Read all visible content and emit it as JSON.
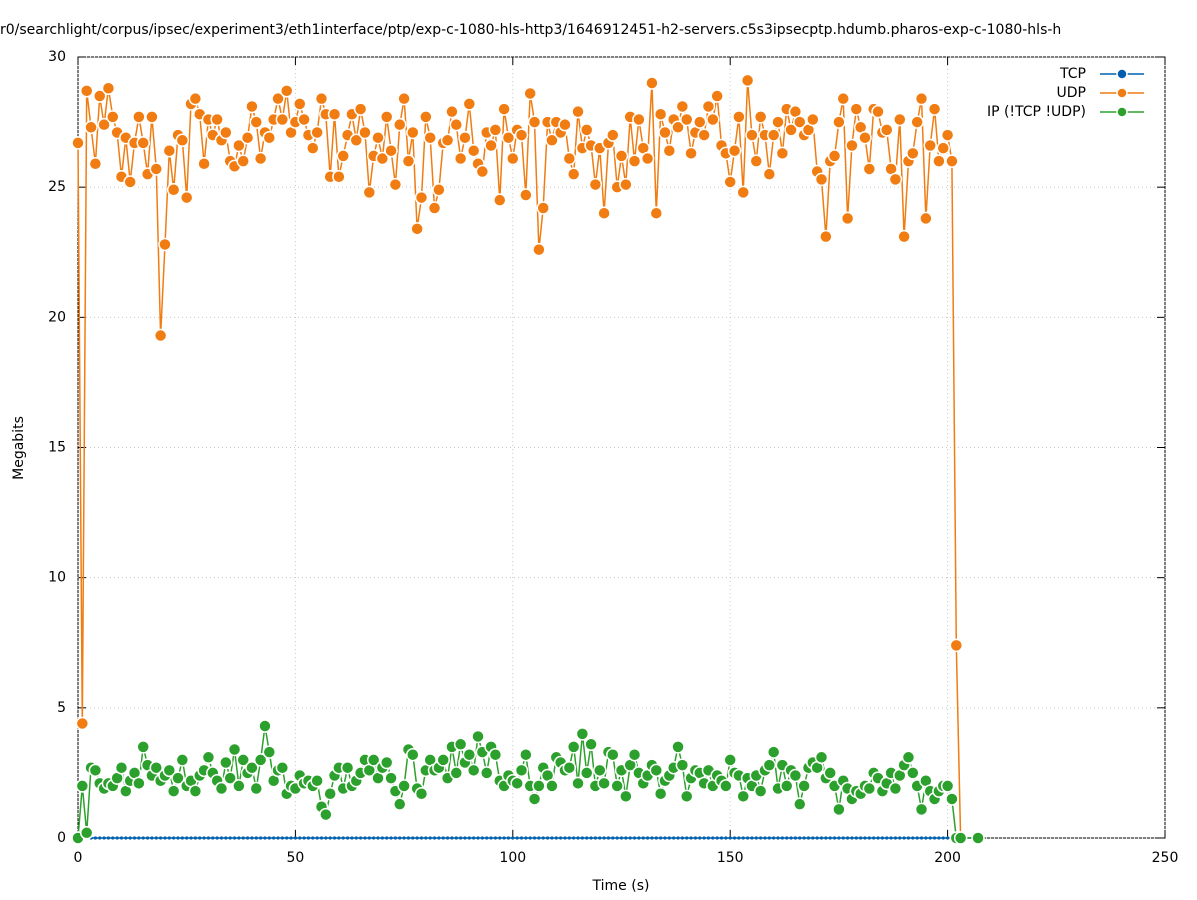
{
  "chart_data": {
    "type": "line",
    "title": "r0/searchlight/corpus/ipsec/experiment3/eth1interface/ptp/exp-c-1080-hls-http3/1646912451-h2-servers.c5s3ipsecptp.hdumb.pharos-exp-c-1080-hls-h",
    "x_label": "Time (s)",
    "y_label": "Megabits",
    "xlim": [
      0,
      250
    ],
    "xticks": [
      0,
      50,
      100,
      150,
      200,
      250
    ],
    "ylim": [
      0,
      30
    ],
    "yticks": [
      0,
      5,
      10,
      15,
      20,
      25,
      30
    ],
    "grid": true,
    "legend": "top-right",
    "x": [
      0,
      1,
      2,
      3,
      4,
      5,
      6,
      7,
      8,
      9,
      10,
      11,
      12,
      13,
      14,
      15,
      16,
      17,
      18,
      19,
      20,
      21,
      22,
      23,
      24,
      25,
      26,
      27,
      28,
      29,
      30,
      31,
      32,
      33,
      34,
      35,
      36,
      37,
      38,
      39,
      40,
      41,
      42,
      43,
      44,
      45,
      46,
      47,
      48,
      49,
      50,
      51,
      52,
      53,
      54,
      55,
      56,
      57,
      58,
      59,
      60,
      61,
      62,
      63,
      64,
      65,
      66,
      67,
      68,
      69,
      70,
      71,
      72,
      73,
      74,
      75,
      76,
      77,
      78,
      79,
      80,
      81,
      82,
      83,
      84,
      85,
      86,
      87,
      88,
      89,
      90,
      91,
      92,
      93,
      94,
      95,
      96,
      97,
      98,
      99,
      100,
      101,
      102,
      103,
      104,
      105,
      106,
      107,
      108,
      109,
      110,
      111,
      112,
      113,
      114,
      115,
      116,
      117,
      118,
      119,
      120,
      121,
      122,
      123,
      124,
      125,
      126,
      127,
      128,
      129,
      130,
      131,
      132,
      133,
      134,
      135,
      136,
      137,
      138,
      139,
      140,
      141,
      142,
      143,
      144,
      145,
      146,
      147,
      148,
      149,
      150,
      151,
      152,
      153,
      154,
      155,
      156,
      157,
      158,
      159,
      160,
      161,
      162,
      163,
      164,
      165,
      166,
      167,
      168,
      169,
      170,
      171,
      172,
      173,
      174,
      175,
      176,
      177,
      178,
      179,
      180,
      181,
      182,
      183,
      184,
      185,
      186,
      187,
      188,
      189,
      190,
      191,
      192,
      193,
      194,
      195,
      196,
      197,
      198,
      199,
      200,
      201,
      202,
      203,
      207
    ],
    "series": [
      {
        "name": "TCP",
        "color": "#0060ad",
        "values": [
          0,
          0,
          0,
          0,
          0,
          0,
          0,
          0,
          0,
          0,
          0,
          0,
          0,
          0,
          0,
          0,
          0,
          0,
          0,
          0,
          0,
          0,
          0,
          0,
          0,
          0,
          0,
          0,
          0,
          0,
          0,
          0,
          0,
          0,
          0,
          0,
          0,
          0,
          0,
          0,
          0,
          0,
          0,
          0,
          0,
          0,
          0,
          0,
          0,
          0,
          0,
          0,
          0,
          0,
          0,
          0,
          0,
          0,
          0,
          0,
          0,
          0,
          0,
          0,
          0,
          0,
          0,
          0,
          0,
          0,
          0,
          0,
          0,
          0,
          0,
          0,
          0,
          0,
          0,
          0,
          0,
          0,
          0,
          0,
          0,
          0,
          0,
          0,
          0,
          0,
          0,
          0,
          0,
          0,
          0,
          0,
          0,
          0,
          0,
          0,
          0,
          0,
          0,
          0,
          0,
          0,
          0,
          0,
          0,
          0,
          0,
          0,
          0,
          0,
          0,
          0,
          0,
          0,
          0,
          0,
          0,
          0,
          0,
          0,
          0,
          0,
          0,
          0,
          0,
          0,
          0,
          0,
          0,
          0,
          0,
          0,
          0,
          0,
          0,
          0,
          0,
          0,
          0,
          0,
          0,
          0,
          0,
          0,
          0,
          0,
          0,
          0,
          0,
          0,
          0,
          0,
          0,
          0,
          0,
          0,
          0,
          0,
          0,
          0,
          0,
          0,
          0,
          0,
          0,
          0,
          0,
          0,
          0,
          0,
          0,
          0,
          0,
          0,
          0,
          0,
          0,
          0,
          0,
          0,
          0,
          0,
          0,
          0,
          0,
          0,
          0,
          0,
          0,
          0,
          0,
          0,
          0,
          0,
          0,
          0,
          0,
          0,
          0,
          0,
          0
        ]
      },
      {
        "name": "UDP",
        "color": "#f07c12",
        "values": [
          26.7,
          4.4,
          28.7,
          27.3,
          25.9,
          28.5,
          27.4,
          28.8,
          27.7,
          27.1,
          25.4,
          26.9,
          25.2,
          26.7,
          27.7,
          26.7,
          25.5,
          27.7,
          25.7,
          19.3,
          22.8,
          26.4,
          24.9,
          27.0,
          26.8,
          24.6,
          28.2,
          28.4,
          27.8,
          25.9,
          27.6,
          27.0,
          27.6,
          26.8,
          27.1,
          26.0,
          25.8,
          26.6,
          26.0,
          26.9,
          28.1,
          27.5,
          26.1,
          27.1,
          26.9,
          27.6,
          28.4,
          27.6,
          28.7,
          27.1,
          27.5,
          28.2,
          27.6,
          27.0,
          26.5,
          27.1,
          28.4,
          27.8,
          25.4,
          27.8,
          25.4,
          26.2,
          27.0,
          27.8,
          26.8,
          28.0,
          27.1,
          24.8,
          26.2,
          26.9,
          26.1,
          27.7,
          26.4,
          25.1,
          27.4,
          28.4,
          26.0,
          27.1,
          23.4,
          24.6,
          27.7,
          26.9,
          24.2,
          24.9,
          26.7,
          26.8,
          27.9,
          27.4,
          26.1,
          26.9,
          28.2,
          26.4,
          25.9,
          25.6,
          27.1,
          26.6,
          27.2,
          24.5,
          28.0,
          26.9,
          26.1,
          27.2,
          27.0,
          24.7,
          28.6,
          27.5,
          22.6,
          24.2,
          27.5,
          26.8,
          27.5,
          27.1,
          27.4,
          26.1,
          25.5,
          27.9,
          26.5,
          27.2,
          26.6,
          25.1,
          26.5,
          24.0,
          26.7,
          27.0,
          25.0,
          26.2,
          25.1,
          27.7,
          26.0,
          27.6,
          26.5,
          26.1,
          29.0,
          24.0,
          27.8,
          27.1,
          26.4,
          27.6,
          27.3,
          28.1,
          27.6,
          26.3,
          27.1,
          27.5,
          27.0,
          28.1,
          27.6,
          28.5,
          26.6,
          26.3,
          25.2,
          26.4,
          27.7,
          24.8,
          29.1,
          27.0,
          26.0,
          27.7,
          27.0,
          25.5,
          27.0,
          27.5,
          26.3,
          28.0,
          27.2,
          27.9,
          27.5,
          27.0,
          27.2,
          27.6,
          25.6,
          25.3,
          23.1,
          26.0,
          26.2,
          27.5,
          28.4,
          23.8,
          26.6,
          28.0,
          27.3,
          26.9,
          25.7,
          28.0,
          27.9,
          27.1,
          27.2,
          25.7,
          25.3,
          27.6,
          23.1,
          26.0,
          26.3,
          27.5,
          28.4,
          23.8,
          26.6,
          28.0,
          26.0,
          26.5,
          27.0,
          26.0,
          7.4,
          0,
          null
        ]
      },
      {
        "name": "IP (!TCP  !UDP)",
        "color": "#2ca02c",
        "values": [
          0,
          2.0,
          0.2,
          2.7,
          2.6,
          2.1,
          1.9,
          2.1,
          2.0,
          2.3,
          2.7,
          1.8,
          2.2,
          2.5,
          2.1,
          3.5,
          2.8,
          2.4,
          2.7,
          2.2,
          2.4,
          2.6,
          1.8,
          2.3,
          3.0,
          2.0,
          2.2,
          1.8,
          2.4,
          2.6,
          3.1,
          2.5,
          2.2,
          1.9,
          2.9,
          2.3,
          3.4,
          2.0,
          3.0,
          2.5,
          2.7,
          1.9,
          3.0,
          4.3,
          3.3,
          2.2,
          2.6,
          2.7,
          1.7,
          2.0,
          1.9,
          2.4,
          2.1,
          2.2,
          2.0,
          2.2,
          1.2,
          0.9,
          1.7,
          2.4,
          2.7,
          1.9,
          2.7,
          2.0,
          2.2,
          2.5,
          3.0,
          2.6,
          3.0,
          2.3,
          2.7,
          2.9,
          2.3,
          1.8,
          1.3,
          2.0,
          3.4,
          3.2,
          1.9,
          1.7,
          2.6,
          3.0,
          2.6,
          2.7,
          3.0,
          2.3,
          3.5,
          2.5,
          3.6,
          2.9,
          3.2,
          2.6,
          3.9,
          3.3,
          2.5,
          3.5,
          3.2,
          2.2,
          2.0,
          2.4,
          2.2,
          2.1,
          2.6,
          3.2,
          2.0,
          1.5,
          2.0,
          2.7,
          2.4,
          2.0,
          3.1,
          2.9,
          2.6,
          2.7,
          3.5,
          2.1,
          4.0,
          2.5,
          3.6,
          2.0,
          2.6,
          2.1,
          3.3,
          3.2,
          2.0,
          2.6,
          1.6,
          2.8,
          3.2,
          2.5,
          2.1,
          2.4,
          2.8,
          2.6,
          1.7,
          2.2,
          2.4,
          2.7,
          3.5,
          2.8,
          1.6,
          2.3,
          2.6,
          2.5,
          2.1,
          2.6,
          2.0,
          2.4,
          2.2,
          2.0,
          3.0,
          2.5,
          2.4,
          1.6,
          2.3,
          2.0,
          2.4,
          1.8,
          2.6,
          2.8,
          3.3,
          1.9,
          2.8,
          2.0,
          2.6,
          2.4,
          1.3,
          2.0,
          2.7,
          2.9,
          2.7,
          3.1,
          2.3,
          2.5,
          2.0,
          1.1,
          2.2,
          1.9,
          1.5,
          1.8,
          1.7,
          2.0,
          1.9,
          2.5,
          2.3,
          1.8,
          2.1,
          2.5,
          1.9,
          2.4,
          2.8,
          3.1,
          2.5,
          2.0,
          1.1,
          2.2,
          1.8,
          1.5,
          1.8,
          2.0,
          2.0,
          1.5,
          0,
          0,
          0
        ]
      }
    ]
  }
}
